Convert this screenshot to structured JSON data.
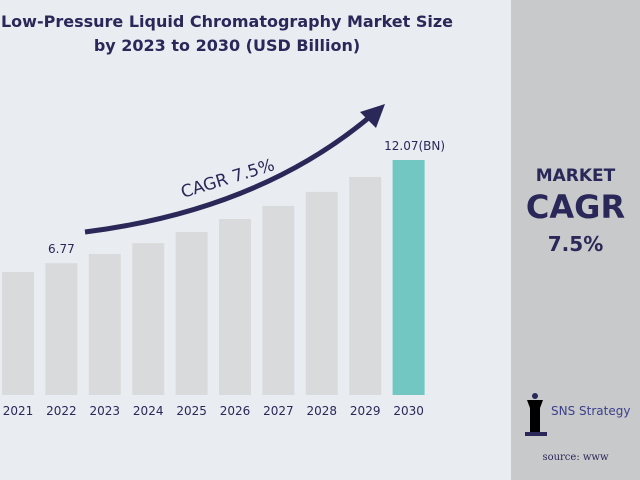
{
  "chart_data": {
    "type": "bar",
    "title": "Low-Pressure Liquid Chromatography Market Size by 2023 to 2030 (USD Billion)",
    "categories": [
      "2021",
      "2022",
      "2023",
      "2024",
      "2025",
      "2026",
      "2027",
      "2028",
      "2029",
      "2030"
    ],
    "values": [
      6.32,
      6.77,
      7.24,
      7.8,
      8.37,
      9.04,
      9.71,
      10.43,
      11.2,
      12.07
    ],
    "data_labels": {
      "1": "6.77",
      "9": "12.07(BN)"
    },
    "annotation": "CAGR 7.5%",
    "colors": {
      "bar": "#d9dadc",
      "highlight": "#72c7c3",
      "arrow": "#2a2858"
    },
    "ylim": [
      0,
      12.07
    ],
    "grid": false
  },
  "panel": {
    "line1": "MARKET",
    "line2": "CAGR",
    "line3": "7.5%",
    "logo": "SNS Strategy",
    "source": "source: www"
  }
}
